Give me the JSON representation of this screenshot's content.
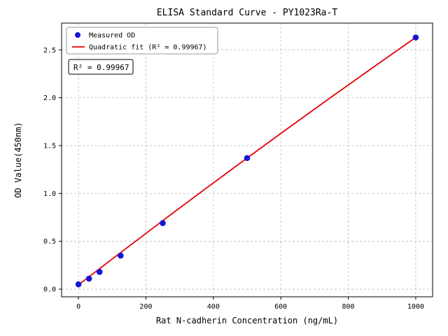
{
  "chart_data": {
    "type": "scatter",
    "title": "ELISA Standard Curve - PY1023Ra-T",
    "xlabel": "Rat N-cadherin Concentration (ng/mL)",
    "ylabel": "OD Value(450nm)",
    "xlim": [
      -50,
      1050
    ],
    "ylim": [
      -0.08,
      2.78
    ],
    "xticks": [
      0,
      200,
      400,
      600,
      800,
      1000
    ],
    "xtick_labels": [
      "0",
      "200",
      "400",
      "600",
      "800",
      "1000"
    ],
    "yticks": [
      0.0,
      0.5,
      1.0,
      1.5,
      2.0,
      2.5
    ],
    "ytick_labels": [
      "0.0",
      "0.5",
      "1.0",
      "1.5",
      "2.0",
      "2.5"
    ],
    "grid": true,
    "grid_style": "dashed",
    "legend_position": "upper-left",
    "annotation": "R² = 0.99967",
    "colors": {
      "points": "#1515d6",
      "fit_line": "#e80000",
      "grid": "#bbbbbb",
      "frame": "#000000"
    },
    "series": [
      {
        "name": "Measured OD",
        "kind": "scatter",
        "color": "#1515d6",
        "x": [
          0,
          31.25,
          62.5,
          125,
          250,
          500,
          1000
        ],
        "y": [
          0.05,
          0.11,
          0.18,
          0.35,
          0.69,
          1.37,
          2.63
        ]
      },
      {
        "name": "Quadratic fit (R² = 0.99967)",
        "kind": "line",
        "color": "#e80000",
        "x": [
          0,
          125,
          250,
          375,
          500,
          625,
          750,
          875,
          1000
        ],
        "y": [
          0.045,
          0.382,
          0.716,
          1.045,
          1.37,
          1.691,
          2.008,
          2.321,
          2.63
        ]
      }
    ]
  }
}
